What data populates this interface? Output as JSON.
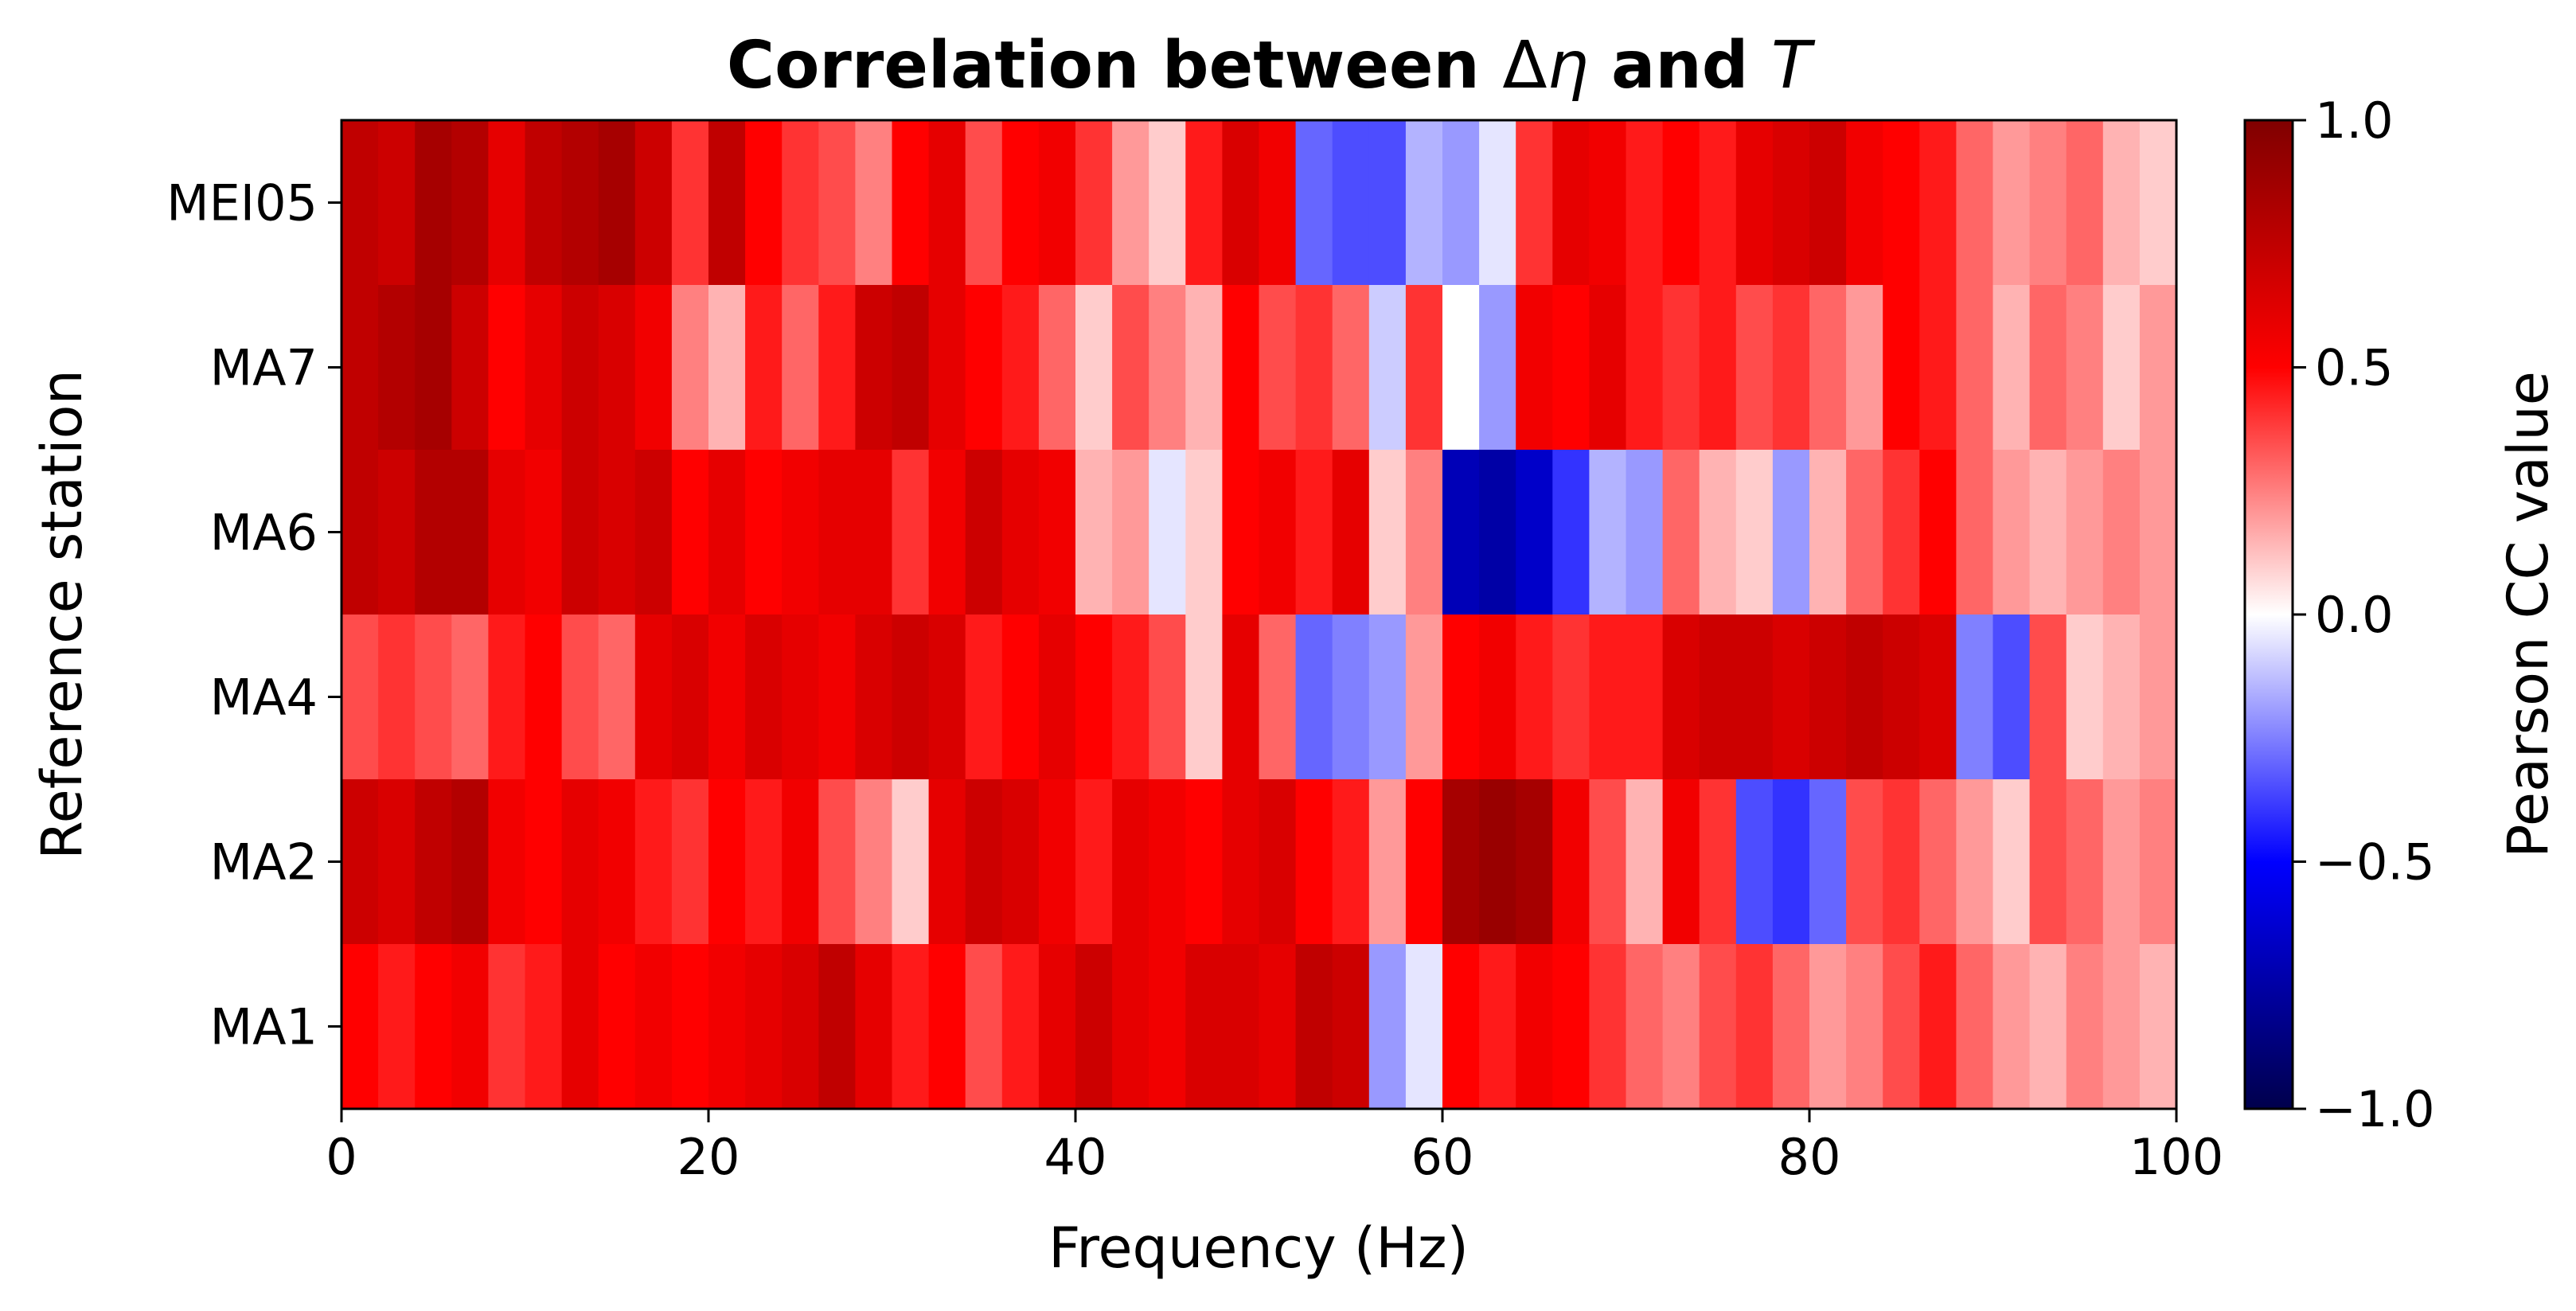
{
  "chart_data": {
    "type": "heatmap",
    "title": "Correlation between Δη and T",
    "title_parts": [
      "Correlation between ",
      "Δ",
      "η",
      " and ",
      "T"
    ],
    "xlabel": "Frequency (Hz)",
    "ylabel": "Reference station",
    "xlim": [
      0,
      100
    ],
    "x_ticks": [
      0,
      20,
      40,
      60,
      80,
      100
    ],
    "stations_top_to_bottom": [
      "MEI05",
      "MA7",
      "MA6",
      "MA4",
      "MA2",
      "MA1"
    ],
    "colorbar": {
      "label": "Pearson CC value",
      "range": [
        -1.0,
        1.0
      ],
      "ticks": [
        1.0,
        0.5,
        0.0,
        -0.5,
        -1.0
      ],
      "tick_labels": [
        "1.0",
        "0.5",
        "0.0",
        "−0.5",
        "−1.0"
      ],
      "colormap": "seismic",
      "colors": [
        "#00004c",
        "#0000ff",
        "#ffffff",
        "#ff0000",
        "#800000"
      ]
    },
    "grid": false,
    "band_width_hz": 2,
    "bands_note": "approximate mean Pearson CC per 2 Hz band (0-100 Hz)",
    "rows": [
      {
        "station": "MEI05",
        "values": [
          0.75,
          0.7,
          0.85,
          0.8,
          0.6,
          0.75,
          0.8,
          0.85,
          0.7,
          0.4,
          0.75,
          0.5,
          0.4,
          0.35,
          0.25,
          0.5,
          0.6,
          0.35,
          0.5,
          0.55,
          0.4,
          0.2,
          0.1,
          0.45,
          0.65,
          0.55,
          -0.3,
          -0.35,
          -0.35,
          -0.15,
          -0.2,
          -0.05,
          0.4,
          0.6,
          0.55,
          0.45,
          0.5,
          0.45,
          0.6,
          0.65,
          0.7,
          0.55,
          0.5,
          0.45,
          0.3,
          0.2,
          0.25,
          0.3,
          0.15,
          0.1
        ]
      },
      {
        "station": "MA7",
        "values": [
          0.75,
          0.8,
          0.85,
          0.7,
          0.5,
          0.6,
          0.7,
          0.65,
          0.55,
          0.25,
          0.15,
          0.45,
          0.3,
          0.45,
          0.7,
          0.75,
          0.6,
          0.5,
          0.45,
          0.3,
          0.1,
          0.35,
          0.25,
          0.15,
          0.5,
          0.35,
          0.4,
          0.3,
          -0.1,
          0.4,
          0.0,
          -0.2,
          0.55,
          0.5,
          0.6,
          0.45,
          0.4,
          0.45,
          0.35,
          0.4,
          0.3,
          0.2,
          0.5,
          0.45,
          0.3,
          0.15,
          0.3,
          0.25,
          0.1,
          0.2
        ]
      },
      {
        "station": "MA6",
        "values": [
          0.75,
          0.7,
          0.8,
          0.8,
          0.6,
          0.55,
          0.7,
          0.65,
          0.7,
          0.5,
          0.6,
          0.5,
          0.55,
          0.6,
          0.6,
          0.4,
          0.55,
          0.7,
          0.6,
          0.55,
          0.15,
          0.2,
          -0.05,
          0.1,
          0.5,
          0.55,
          0.45,
          0.6,
          0.1,
          0.25,
          -0.7,
          -0.75,
          -0.65,
          -0.4,
          -0.15,
          -0.2,
          0.3,
          0.15,
          0.1,
          -0.2,
          0.15,
          0.3,
          0.4,
          0.5,
          0.3,
          0.2,
          0.15,
          0.2,
          0.25,
          0.2
        ]
      },
      {
        "station": "MA4",
        "values": [
          0.35,
          0.4,
          0.35,
          0.3,
          0.45,
          0.5,
          0.35,
          0.3,
          0.6,
          0.65,
          0.55,
          0.65,
          0.6,
          0.55,
          0.65,
          0.7,
          0.65,
          0.45,
          0.5,
          0.6,
          0.5,
          0.45,
          0.35,
          0.1,
          0.6,
          0.3,
          -0.3,
          -0.25,
          -0.2,
          0.2,
          0.5,
          0.55,
          0.45,
          0.4,
          0.45,
          0.45,
          0.65,
          0.7,
          0.7,
          0.65,
          0.7,
          0.75,
          0.7,
          0.65,
          -0.25,
          -0.35,
          0.35,
          0.1,
          0.15,
          0.2
        ]
      },
      {
        "station": "MA2",
        "values": [
          0.7,
          0.65,
          0.75,
          0.8,
          0.55,
          0.5,
          0.6,
          0.55,
          0.45,
          0.4,
          0.5,
          0.45,
          0.55,
          0.35,
          0.25,
          0.1,
          0.6,
          0.7,
          0.65,
          0.55,
          0.45,
          0.6,
          0.55,
          0.5,
          0.6,
          0.65,
          0.5,
          0.45,
          0.2,
          0.5,
          0.85,
          0.9,
          0.85,
          0.55,
          0.35,
          0.15,
          0.55,
          0.4,
          -0.35,
          -0.4,
          -0.3,
          0.35,
          0.4,
          0.3,
          0.2,
          0.1,
          0.35,
          0.3,
          0.2,
          0.25
        ]
      },
      {
        "station": "MA1",
        "values": [
          0.5,
          0.45,
          0.5,
          0.55,
          0.4,
          0.45,
          0.6,
          0.5,
          0.55,
          0.5,
          0.55,
          0.6,
          0.65,
          0.75,
          0.6,
          0.45,
          0.5,
          0.35,
          0.45,
          0.6,
          0.7,
          0.6,
          0.55,
          0.65,
          0.65,
          0.6,
          0.75,
          0.7,
          -0.2,
          -0.05,
          0.5,
          0.45,
          0.55,
          0.5,
          0.4,
          0.3,
          0.25,
          0.35,
          0.4,
          0.3,
          0.2,
          0.25,
          0.35,
          0.45,
          0.3,
          0.2,
          0.15,
          0.25,
          0.2,
          0.15
        ]
      }
    ]
  }
}
